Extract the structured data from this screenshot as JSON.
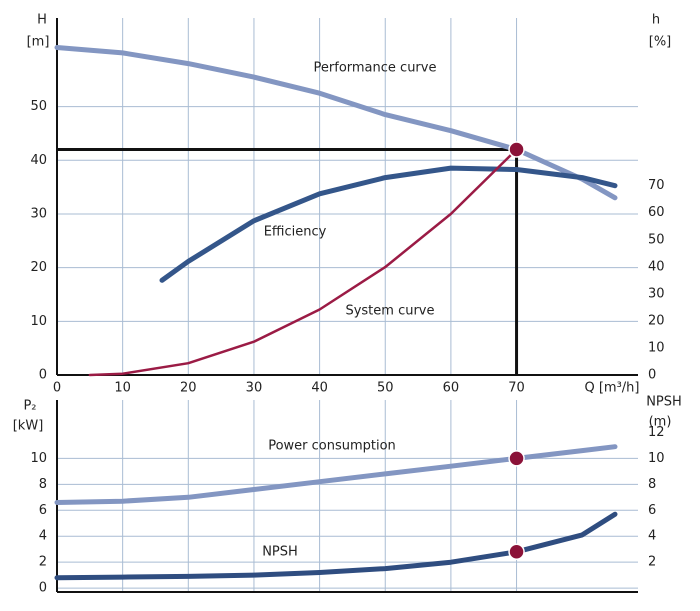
{
  "chart_data": [
    {
      "type": "line",
      "xlabel": "Q [m³/h]",
      "ylabel": [
        "H",
        "[m]"
      ],
      "y2label": [
        "h",
        "[%]"
      ],
      "xlim": [
        0,
        88.5
      ],
      "xticks": [
        0,
        10,
        20,
        30,
        40,
        50,
        60,
        70
      ],
      "ylim": [
        0,
        66.5
      ],
      "yticks": [
        0,
        10,
        20,
        30,
        40,
        50
      ],
      "y2lim": [
        0,
        132
      ],
      "y2ticks": [
        0,
        10,
        20,
        30,
        40,
        50,
        60,
        70
      ],
      "grid": true,
      "series": [
        {
          "name": "Performance curve",
          "color": "#8396c2",
          "x": [
            0,
            10,
            20,
            30,
            40,
            50,
            60,
            70,
            80,
            85
          ],
          "values": [
            61,
            60,
            58,
            55.5,
            52.5,
            48.5,
            45.5,
            42,
            36.5,
            33
          ]
        },
        {
          "name": "Efficiency",
          "color": "#34568a",
          "axis": "y2",
          "x": [
            16,
            20,
            30,
            40,
            50,
            60,
            70,
            80,
            85
          ],
          "values": [
            35,
            42,
            57,
            67,
            73,
            76.5,
            76,
            73,
            70
          ]
        },
        {
          "name": "System curve",
          "color": "#9b1b45",
          "x": [
            5,
            10,
            20,
            30,
            40,
            50,
            60,
            70
          ],
          "values": [
            0,
            0.25,
            2.2,
            6.2,
            12.2,
            20.1,
            30,
            42
          ]
        }
      ],
      "duty_point": {
        "x": 70,
        "y": 42
      }
    },
    {
      "type": "line",
      "ylabel": [
        "P₂",
        "[kW]"
      ],
      "y2label": [
        "NPSH",
        "(m)"
      ],
      "xlim": [
        0,
        88.5
      ],
      "ylim": [
        -0.3,
        14.5
      ],
      "yticks": [
        0,
        2,
        4,
        6,
        8,
        10
      ],
      "y2lim": [
        -0.3,
        14.5
      ],
      "y2ticks": [
        2,
        4,
        6,
        8,
        10,
        12
      ],
      "grid": true,
      "series": [
        {
          "name": "Power consumption",
          "color": "#8396c2",
          "x": [
            0,
            10,
            20,
            30,
            40,
            50,
            60,
            70,
            80,
            85
          ],
          "values": [
            6.6,
            6.7,
            7.0,
            7.6,
            8.2,
            8.8,
            9.4,
            10,
            10.6,
            10.9
          ]
        },
        {
          "name": "NPSH",
          "color": "#2f4d80",
          "axis": "y2",
          "x": [
            0,
            10,
            20,
            30,
            40,
            50,
            60,
            70,
            80,
            85
          ],
          "values": [
            0.8,
            0.85,
            0.9,
            1.0,
            1.2,
            1.5,
            2,
            2.8,
            4.1,
            5.7
          ]
        }
      ],
      "markers": [
        {
          "x": 70,
          "y": 10
        },
        {
          "x": 70,
          "y": 2.8,
          "axis": "y2"
        }
      ]
    }
  ]
}
